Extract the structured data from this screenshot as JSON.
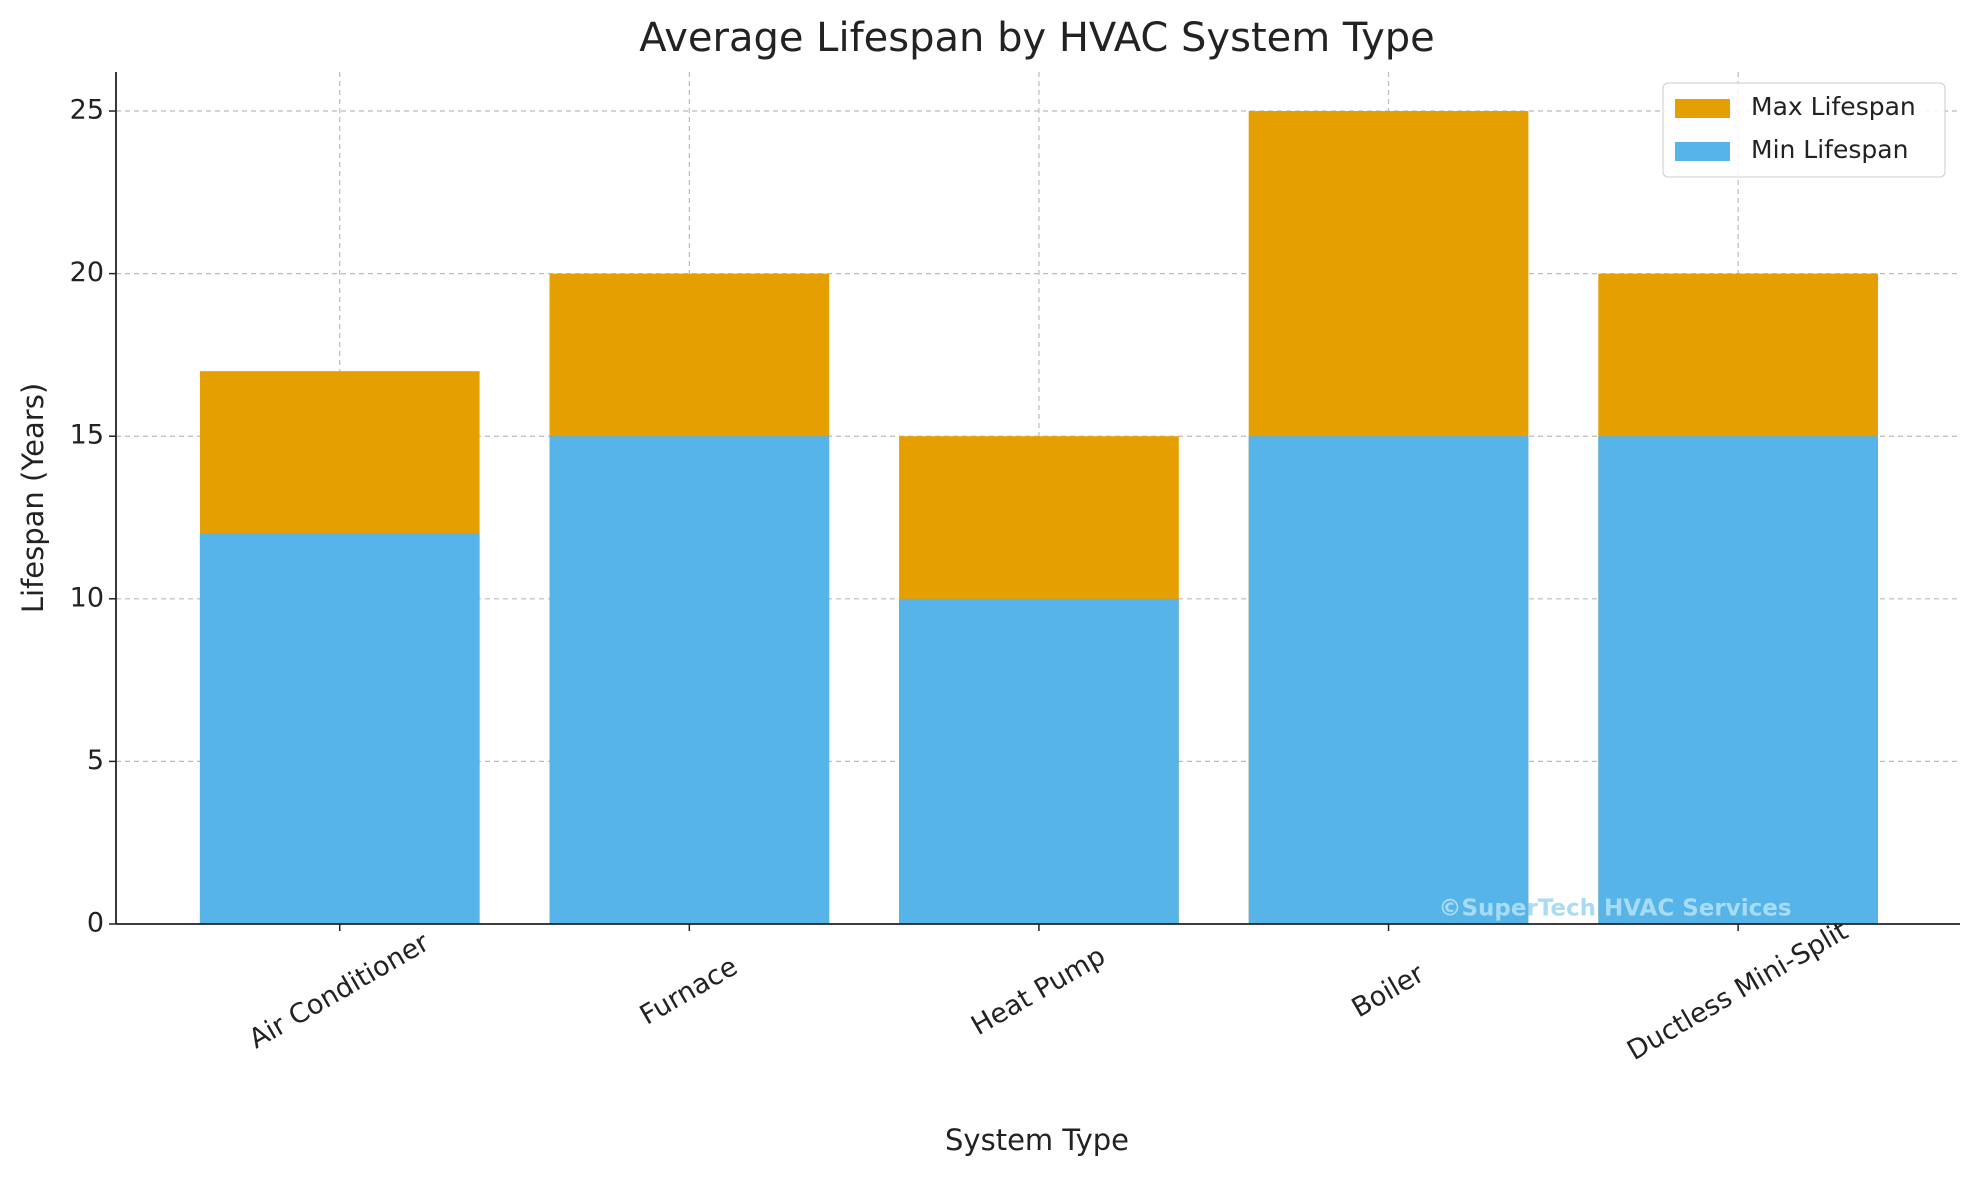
{
  "chart_data": {
    "type": "bar",
    "title": "Average Lifespan by HVAC System Type",
    "x_label": "System Type",
    "y_label": "Lifespan (Years)",
    "categories": [
      "Air Conditioner",
      "Furnace",
      "Heat Pump",
      "Boiler",
      "Ductless Mini-Split"
    ],
    "series": [
      {
        "name": "Max Lifespan",
        "color": "#e69f00",
        "values": [
          17,
          20,
          15,
          25,
          20
        ]
      },
      {
        "name": "Min Lifespan",
        "color": "#56b4e9",
        "values": [
          12,
          15,
          10,
          15,
          15
        ]
      }
    ],
    "ylim": [
      0,
      26.2
    ],
    "yticks": [
      0,
      5,
      10,
      15,
      20,
      25
    ],
    "grid": true,
    "legend": "upper right",
    "annotation": "©SuperTech HVAC Services"
  }
}
